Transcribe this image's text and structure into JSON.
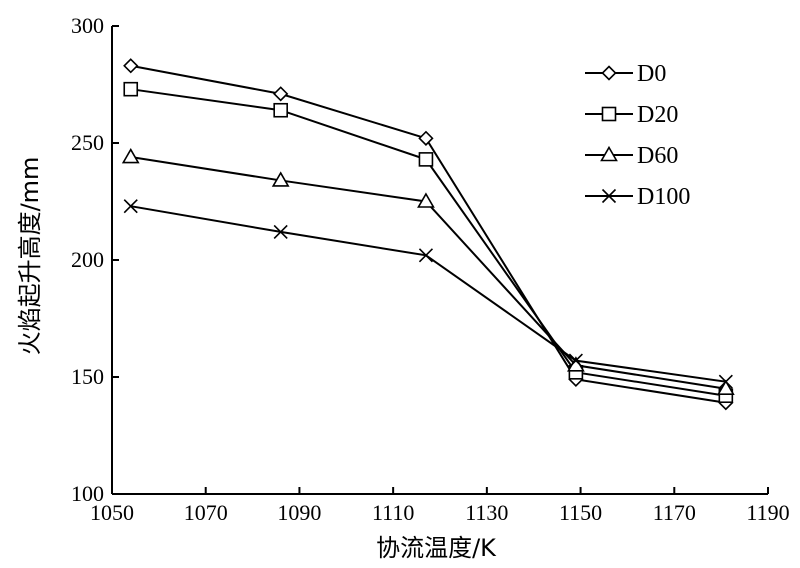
{
  "chart_data": {
    "type": "line",
    "xlabel": "协流温度/K",
    "ylabel": "火焰起升高度/mm",
    "xlim": [
      1050,
      1190
    ],
    "ylim": [
      100,
      300
    ],
    "xticks": [
      "1050",
      "1070",
      "1090",
      "1110",
      "1130",
      "1150",
      "1170",
      "1190"
    ],
    "yticks": [
      "100",
      "150",
      "200",
      "250",
      "300"
    ],
    "x": [
      1054,
      1086,
      1117,
      1149,
      1181
    ],
    "legend_position": "top-right",
    "series": [
      {
        "name": "D0",
        "marker": "diamond",
        "values": [
          283,
          271,
          252,
          149,
          139
        ]
      },
      {
        "name": "D20",
        "marker": "square",
        "values": [
          273,
          264,
          243,
          152,
          142
        ]
      },
      {
        "name": "D60",
        "marker": "triangle",
        "values": [
          244,
          234,
          225,
          155,
          145
        ]
      },
      {
        "name": "D100",
        "marker": "cross",
        "values": [
          223,
          212,
          202,
          157,
          148
        ]
      }
    ]
  }
}
